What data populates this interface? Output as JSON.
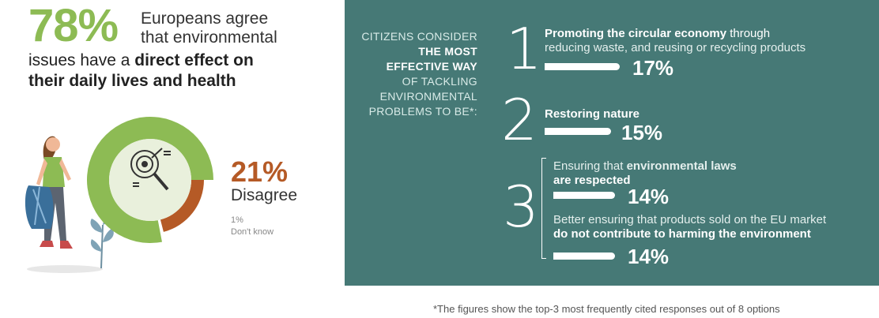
{
  "left": {
    "big_percent": "78%",
    "agree_line1": "Europeans agree",
    "agree_line2": "that environmental",
    "issues_plain": "issues have a ",
    "issues_bold": "direct effect on",
    "daily_bold": "their daily lives and health",
    "donut": {
      "agree": 78,
      "disagree": 21,
      "dont_know": 1,
      "colors": {
        "agree": "#8dbb54",
        "disagree": "#b55a26",
        "center": "#e9f0dc"
      }
    },
    "disagree_percent": "21%",
    "disagree_label": "Disagree",
    "dont_know_percent": "1%",
    "dont_know_label": "Don't know",
    "icons": [
      "target-search-icon",
      "person-illustration",
      "plant-illustration"
    ]
  },
  "right": {
    "background": "#467976",
    "label_lines": [
      "Citizens consider",
      "the most",
      "effective way",
      "of tackling",
      "environmental",
      "problems to be*:"
    ],
    "items": [
      {
        "rank": "1",
        "bold": "Promoting the circular economy",
        "rest": " through",
        "line2": "reducing waste, and reusing or recycling products",
        "percent": "17%",
        "value": 17
      },
      {
        "rank": "2",
        "bold": "Restoring nature",
        "percent": "15%",
        "value": 15
      },
      {
        "rank": "3",
        "sub": [
          {
            "plain": "Ensuring that ",
            "bold1": "environmental laws",
            "bold2": "are respected",
            "percent": "14%",
            "value": 14
          },
          {
            "plain_line": "Better ensuring that products sold on the EU market",
            "bold_line": "do not contribute to harming the environment",
            "percent": "14%",
            "value": 14
          }
        ]
      }
    ]
  },
  "footnote": "*The figures show the top-3 most frequently cited responses out of 8 options"
}
